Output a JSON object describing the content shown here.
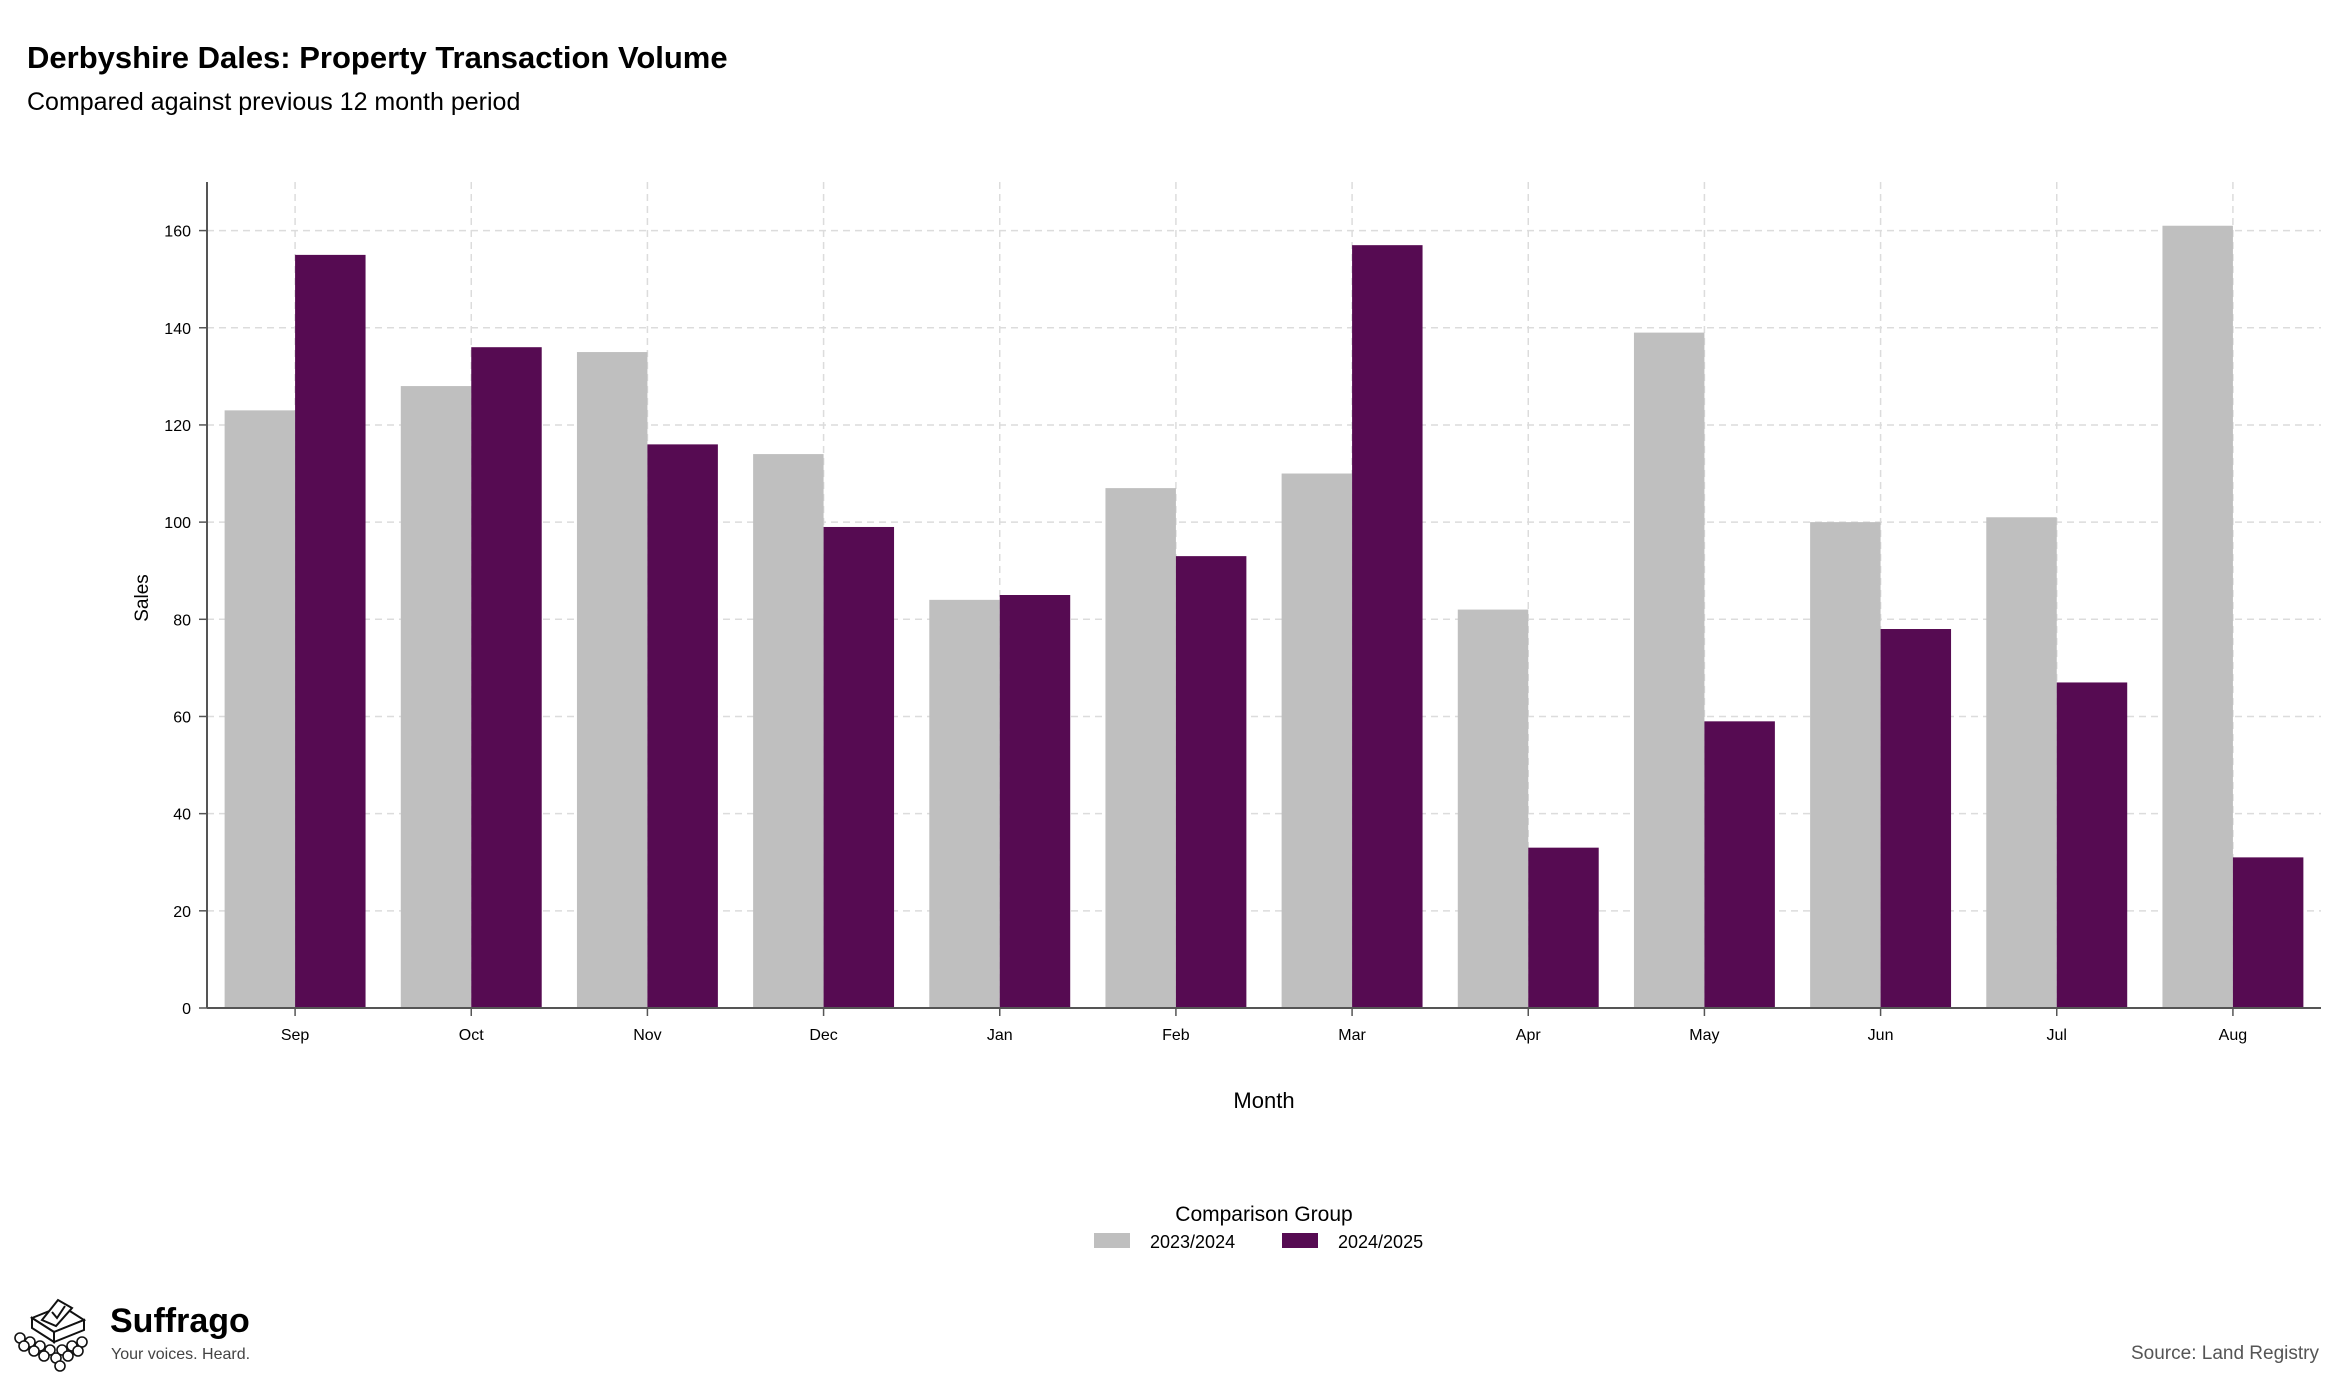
{
  "title": "Derbyshire Dales: Property Transaction Volume",
  "subtitle": "Compared against previous 12 month period",
  "source": "Source: Land Registry",
  "brand": {
    "name": "Suffrago",
    "tagline": "Your voices. Heard."
  },
  "chart_data": {
    "type": "bar",
    "xlabel": "Month",
    "ylabel": "Sales",
    "ylim": [
      0,
      170
    ],
    "yticks": [
      0,
      20,
      40,
      60,
      80,
      100,
      120,
      140,
      160
    ],
    "grid": true,
    "categories": [
      "Sep",
      "Oct",
      "Nov",
      "Dec",
      "Jan",
      "Feb",
      "Mar",
      "Apr",
      "May",
      "Jun",
      "Jul",
      "Aug"
    ],
    "legend": {
      "title": "Comparison Group",
      "position": "bottom"
    },
    "series": [
      {
        "name": "2023/2024",
        "color": "#bfbfbf",
        "values": [
          123,
          128,
          135,
          114,
          84,
          107,
          110,
          82,
          139,
          100,
          101,
          161
        ]
      },
      {
        "name": "2024/2025",
        "color": "#560b52",
        "values": [
          155,
          136,
          116,
          99,
          85,
          93,
          157,
          33,
          59,
          78,
          67,
          31
        ]
      }
    ]
  }
}
